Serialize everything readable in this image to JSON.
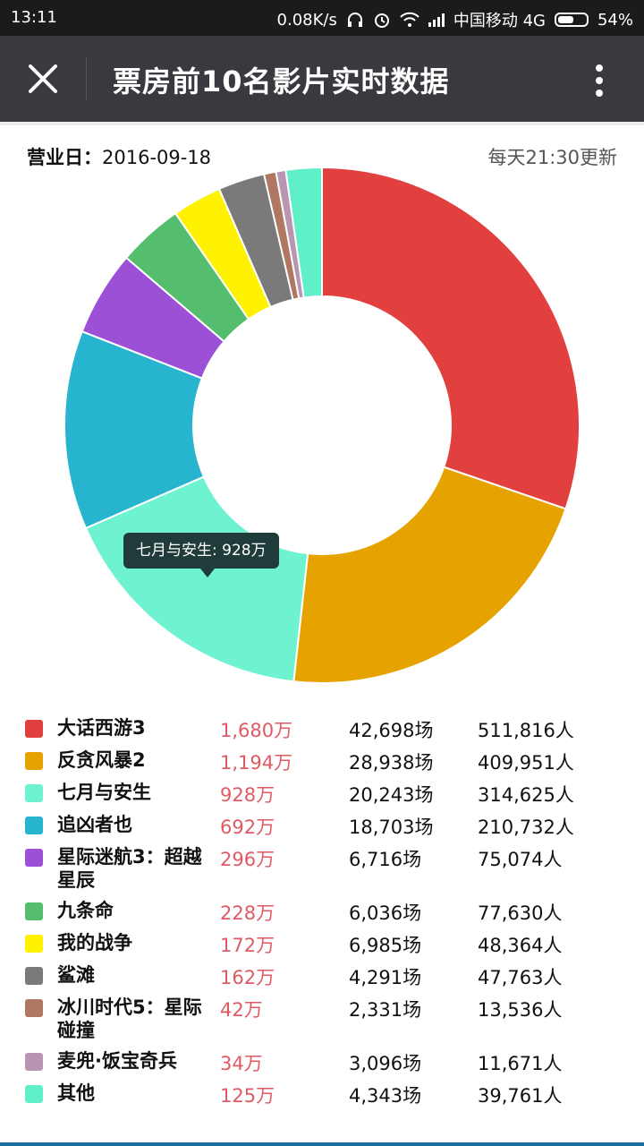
{
  "status_bar": {
    "time": "13:11",
    "speed": "0.08K/s",
    "carrier": "中国移动 4G",
    "battery": "54%",
    "battery_level": 0.54
  },
  "app_bar": {
    "title": "票房前10名影片实时数据",
    "close_icon": "close-icon",
    "more_icon": "more-vert-icon"
  },
  "info": {
    "date_label": "营业日：",
    "date_value": "2016-09-18",
    "update_note": "每天21:30更新"
  },
  "tooltip": {
    "text": "七月与安生: 928万"
  },
  "chart_data": {
    "type": "pie",
    "donut": true,
    "categories": [
      "大话西游3",
      "反贪风暴2",
      "七月与安生",
      "追凶者也",
      "星际迷航3：超越星辰",
      "九条命",
      "我的战争",
      "鲨滩",
      "冰川时代5：星际碰撞",
      "麦兜·饭宝奇兵",
      "其他"
    ],
    "values": [
      1680,
      1194,
      928,
      692,
      296,
      228,
      172,
      162,
      42,
      34,
      125
    ],
    "colors": [
      "#e2403f",
      "#e6a300",
      "#6ff2cf",
      "#26b4cf",
      "#9b50d6",
      "#55be6e",
      "#fff200",
      "#7a7a7a",
      "#b07862",
      "#b896b2",
      "#5ff0c8"
    ],
    "unit": "万",
    "legend_position": "bottom"
  },
  "legend": {
    "rows": [
      {
        "name": "大话西游3",
        "box": "1,680万",
        "shows": "42,698场",
        "people": "511,816人"
      },
      {
        "name": "反贪风暴2",
        "box": "1,194万",
        "shows": "28,938场",
        "people": "409,951人"
      },
      {
        "name": "七月与安生",
        "box": "928万",
        "shows": "20,243场",
        "people": "314,625人"
      },
      {
        "name": "追凶者也",
        "box": "692万",
        "shows": "18,703场",
        "people": "210,732人"
      },
      {
        "name": "星际迷航3：超越星辰",
        "box": "296万",
        "shows": "6,716场",
        "people": "75,074人"
      },
      {
        "name": "九条命",
        "box": "228万",
        "shows": "6,036场",
        "people": "77,630人"
      },
      {
        "name": "我的战争",
        "box": "172万",
        "shows": "6,985场",
        "people": "48,364人"
      },
      {
        "name": "鲨滩",
        "box": "162万",
        "shows": "4,291场",
        "people": "47,763人"
      },
      {
        "name": "冰川时代5：星际碰撞",
        "box": "42万",
        "shows": "2,331场",
        "people": "13,536人"
      },
      {
        "name": "麦兜·饭宝奇兵",
        "box": "34万",
        "shows": "3,096场",
        "people": "11,671人"
      },
      {
        "name": "其他",
        "box": "125万",
        "shows": "4,343场",
        "people": "39,761人"
      }
    ]
  }
}
